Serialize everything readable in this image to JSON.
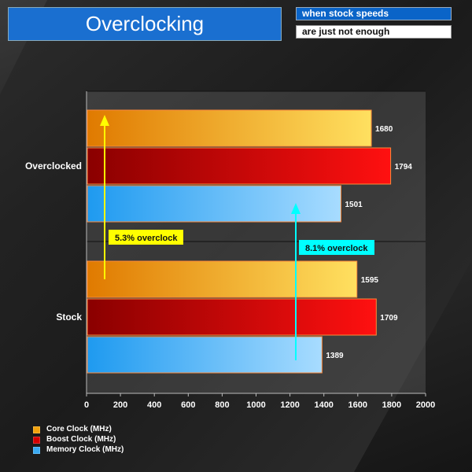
{
  "header": {
    "title": "Overclocking",
    "subtitle_line1": "when stock speeds",
    "subtitle_line2": "are just not enough"
  },
  "chart_data": {
    "type": "bar",
    "orientation": "horizontal",
    "categories": [
      "Overclocked",
      "Stock"
    ],
    "series": [
      {
        "name": "Core Clock (MHz)",
        "values": [
          1680,
          1595
        ],
        "color": "#f2a20c"
      },
      {
        "name": "Boost Clock (MHz)",
        "values": [
          1794,
          1709
        ],
        "color": "#d40000"
      },
      {
        "name": "Memory Clock (MHz)",
        "values": [
          1501,
          1389
        ],
        "color": "#3aaaf2"
      }
    ],
    "xlim": [
      0,
      2000
    ],
    "xticks": [
      0,
      200,
      400,
      600,
      800,
      1000,
      1200,
      1400,
      1600,
      1800,
      2000
    ],
    "legend_position": "bottom-left",
    "annotations": [
      {
        "text": "5.3% overclock",
        "color": "#ffff00"
      },
      {
        "text": "8.1% overclock",
        "color": "#00ffff"
      }
    ]
  }
}
